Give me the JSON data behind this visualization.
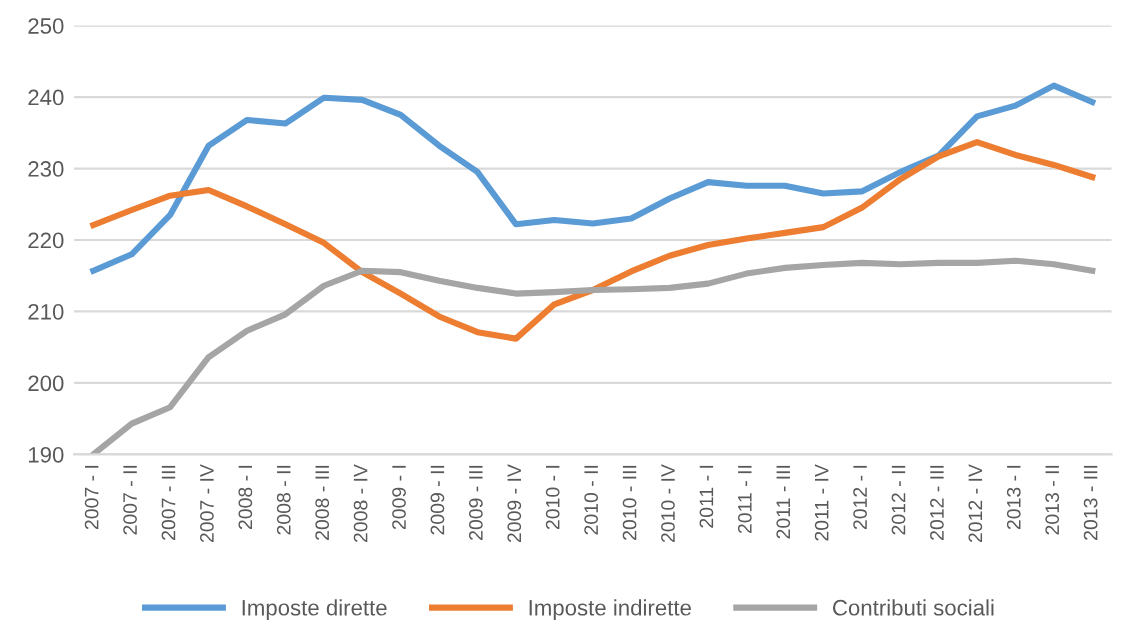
{
  "chart_data": {
    "type": "line",
    "categories": [
      "2007 - I",
      "2007 - II",
      "2007 - III",
      "2007 - IV",
      "2008 - I",
      "2008 - II",
      "2008 - III",
      "2008 - IV",
      "2009 - I",
      "2009 - II",
      "2009 - III",
      "2009 - IV",
      "2010 - I",
      "2010 - II",
      "2010 - III",
      "2010 - IV",
      "2011 - I",
      "2011 - II",
      "2011 - III",
      "2011 - IV",
      "2012 - I",
      "2012 - II",
      "2012 - III",
      "2012 - IV",
      "2013 - I",
      "2013 - II",
      "2013 - III"
    ],
    "series": [
      {
        "name": "Imposte dirette",
        "color": "#5b9bd5",
        "values": [
          215.7,
          218,
          223.5,
          233.2,
          236.8,
          236.3,
          239.9,
          239.6,
          237.5,
          233.2,
          229.5,
          222.2,
          222.8,
          222.3,
          223,
          225.8,
          228.1,
          227.6,
          227.6,
          226.5,
          226.8,
          229.5,
          231.8,
          237.3,
          238.8,
          241.6,
          239.3
        ]
      },
      {
        "name": "Imposte indirette",
        "color": "#ed7d31",
        "values": [
          222.1,
          224.2,
          226.2,
          227,
          224.7,
          222.2,
          219.6,
          215.5,
          212.5,
          209.3,
          207.1,
          206.2,
          211,
          213,
          215.6,
          217.8,
          219.3,
          220.2,
          221,
          221.8,
          224.5,
          228.5,
          231.7,
          233.7,
          231.9,
          230.5,
          228.8
        ]
      },
      {
        "name": "Contributi sociali",
        "color": "#a5a5a5",
        "values": [
          190,
          194.3,
          196.6,
          203.6,
          207.3,
          209.6,
          213.6,
          215.7,
          215.5,
          214.3,
          213.3,
          212.5,
          212.7,
          213,
          213.1,
          213.3,
          213.9,
          215.3,
          216.1,
          216.5,
          216.8,
          216.6,
          216.8,
          216.8,
          217.1,
          216.6,
          215.7
        ]
      }
    ],
    "ylim": [
      190,
      250
    ],
    "yticks": [
      190,
      200,
      210,
      220,
      230,
      240,
      250
    ],
    "grid": "y",
    "legend": "bottom",
    "marker": "none",
    "line_style": "solid"
  }
}
